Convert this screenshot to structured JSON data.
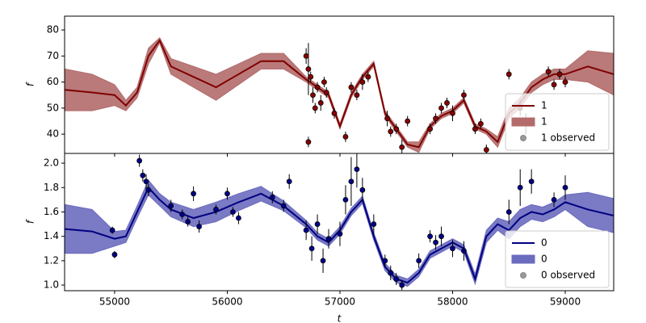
{
  "chart_data": [
    {
      "type": "line",
      "ylabel": "f",
      "xlim": [
        54556,
        59430
      ],
      "ylim": [
        32.6,
        85.3
      ],
      "xticks": [
        55000,
        56000,
        57000,
        58000,
        59000
      ],
      "show_xtick_labels": false,
      "yticks": [
        40,
        50,
        60,
        70,
        80
      ],
      "legend": "lower right",
      "x": [
        54560,
        54800,
        55000,
        55100,
        55200,
        55300,
        55400,
        55500,
        55700,
        55900,
        56100,
        56300,
        56500,
        56700,
        56800,
        56900,
        57000,
        57100,
        57200,
        57300,
        57400,
        57500,
        57600,
        57700,
        57800,
        57900,
        58000,
        58100,
        58200,
        58300,
        58400,
        58500,
        58600,
        58700,
        58800,
        58900,
        59000,
        59200,
        59430
      ],
      "series": [
        {
          "name": "1",
          "kind": "line",
          "color": "#800000",
          "values": [
            57,
            56,
            55,
            51,
            56,
            70,
            76,
            66,
            62,
            58,
            63,
            68,
            68,
            61,
            58,
            55,
            43,
            55,
            62,
            67,
            48,
            42,
            36,
            35,
            43,
            47,
            49,
            53,
            43,
            41,
            37,
            48,
            52,
            58,
            61,
            63,
            63,
            66,
            63
          ]
        },
        {
          "name": "1",
          "kind": "band",
          "color": "#b36b6b",
          "lower": [
            49,
            49,
            51,
            49,
            54,
            67,
            75,
            63,
            58,
            53,
            59,
            65,
            65,
            60,
            57,
            54,
            42,
            54,
            61,
            66,
            47,
            41,
            35,
            33,
            42,
            46,
            48,
            52,
            42,
            40,
            35,
            46,
            50,
            56,
            59,
            61,
            61,
            60,
            55
          ],
          "upper": [
            65,
            63,
            59,
            53,
            58,
            73,
            77,
            69,
            66,
            63,
            67,
            71,
            71,
            62,
            59,
            56,
            44,
            56,
            63,
            68,
            49,
            43,
            37,
            37,
            44,
            48,
            50,
            54,
            44,
            42,
            39,
            50,
            54,
            60,
            63,
            65,
            65,
            72,
            71
          ]
        },
        {
          "name": "1 observed",
          "kind": "observed",
          "color": "#8b0000",
          "x": [
            56700,
            56720,
            56740,
            56760,
            56780,
            56800,
            56830,
            56860,
            56880,
            56720,
            56950,
            57050,
            57100,
            57150,
            57200,
            57250,
            57420,
            57450,
            57500,
            57550,
            57600,
            57800,
            57850,
            57900,
            57950,
            58000,
            58100,
            58200,
            58250,
            58300,
            58500,
            58600,
            58650,
            58850,
            58900,
            58950,
            59000
          ],
          "values": [
            70,
            65,
            62,
            55,
            50,
            58,
            52,
            60,
            56,
            37,
            48,
            39,
            58,
            55,
            60,
            62,
            46,
            41,
            42,
            35,
            45,
            42,
            46,
            50,
            52,
            48,
            55,
            42,
            44,
            34,
            63,
            50,
            44,
            64,
            59,
            63,
            60
          ],
          "errors": [
            3,
            10,
            2,
            3,
            2,
            2,
            3,
            2,
            2,
            2,
            2,
            2,
            2,
            2,
            3,
            2,
            3,
            2,
            2,
            3,
            2,
            2,
            2,
            2,
            2,
            3,
            2,
            2,
            2,
            2,
            2,
            3,
            4,
            2,
            2,
            2,
            2
          ]
        }
      ]
    },
    {
      "type": "line",
      "ylabel": "f",
      "xlabel": "t",
      "xlim": [
        54556,
        59430
      ],
      "ylim": [
        0.954,
        2.08
      ],
      "xticks": [
        55000,
        56000,
        57000,
        58000,
        59000
      ],
      "show_xtick_labels": true,
      "yticks": [
        {
          "value": 1,
          "label": "1.0"
        },
        1.2,
        1.4,
        1.6,
        1.8,
        {
          "value": 2,
          "label": "2.0"
        }
      ],
      "legend": "lower right",
      "x": [
        54560,
        54800,
        55000,
        55100,
        55200,
        55300,
        55400,
        55500,
        55700,
        55900,
        56100,
        56300,
        56500,
        56700,
        56800,
        56900,
        57000,
        57100,
        57200,
        57300,
        57400,
        57500,
        57600,
        57700,
        57800,
        57900,
        58000,
        58100,
        58200,
        58300,
        58400,
        58500,
        58600,
        58700,
        58800,
        58900,
        59000,
        59200,
        59430
      ],
      "series": [
        {
          "name": "0",
          "kind": "line",
          "color": "#000080",
          "values": [
            1.46,
            1.44,
            1.38,
            1.4,
            1.6,
            1.8,
            1.7,
            1.62,
            1.55,
            1.6,
            1.68,
            1.75,
            1.65,
            1.5,
            1.4,
            1.35,
            1.45,
            1.6,
            1.7,
            1.4,
            1.15,
            1.05,
            1.02,
            1.1,
            1.25,
            1.3,
            1.35,
            1.3,
            1.05,
            1.4,
            1.5,
            1.45,
            1.55,
            1.6,
            1.58,
            1.62,
            1.68,
            1.62,
            1.57
          ]
        },
        {
          "name": "0",
          "kind": "band",
          "color": "#6b6bbf",
          "lower": [
            1.26,
            1.26,
            1.32,
            1.35,
            1.55,
            1.74,
            1.65,
            1.56,
            1.48,
            1.52,
            1.61,
            1.69,
            1.61,
            1.47,
            1.37,
            1.32,
            1.42,
            1.57,
            1.67,
            1.37,
            1.12,
            1.02,
            0.99,
            1.07,
            1.22,
            1.27,
            1.32,
            1.27,
            1.01,
            1.35,
            1.45,
            1.38,
            1.48,
            1.54,
            1.52,
            1.56,
            1.62,
            1.48,
            1.43
          ],
          "upper": [
            1.66,
            1.62,
            1.44,
            1.45,
            1.65,
            1.86,
            1.75,
            1.68,
            1.62,
            1.68,
            1.75,
            1.81,
            1.69,
            1.53,
            1.43,
            1.38,
            1.48,
            1.63,
            1.73,
            1.43,
            1.18,
            1.08,
            1.05,
            1.13,
            1.28,
            1.33,
            1.38,
            1.33,
            1.09,
            1.45,
            1.55,
            1.52,
            1.62,
            1.66,
            1.64,
            1.68,
            1.74,
            1.76,
            1.71
          ]
        },
        {
          "name": "0 observed",
          "kind": "observed",
          "color": "#00008b",
          "x": [
            54980,
            55000,
            55220,
            55250,
            55280,
            55300,
            55500,
            55600,
            55650,
            55700,
            55750,
            55900,
            56000,
            56050,
            56100,
            56400,
            56500,
            56550,
            56700,
            56750,
            56800,
            56850,
            56900,
            57000,
            57050,
            57100,
            57150,
            57200,
            57300,
            57400,
            57450,
            57500,
            57550,
            57700,
            57800,
            57850,
            57900,
            58000,
            58100,
            58500,
            58600,
            58700,
            58900,
            59000
          ],
          "values": [
            1.45,
            1.25,
            2.02,
            1.9,
            1.85,
            1.78,
            1.65,
            1.58,
            1.52,
            1.75,
            1.48,
            1.62,
            1.75,
            1.6,
            1.55,
            1.72,
            1.65,
            1.85,
            1.45,
            1.3,
            1.5,
            1.2,
            1.38,
            1.42,
            1.7,
            1.85,
            1.95,
            1.78,
            1.5,
            1.2,
            1.1,
            1.05,
            1.0,
            1.2,
            1.4,
            1.35,
            1.4,
            1.3,
            1.28,
            1.6,
            1.8,
            1.85,
            1.7,
            1.8
          ],
          "errors": [
            0.03,
            0.03,
            0.05,
            0.05,
            0.06,
            0.05,
            0.05,
            0.04,
            0.04,
            0.06,
            0.05,
            0.04,
            0.05,
            0.04,
            0.05,
            0.05,
            0.05,
            0.06,
            0.08,
            0.1,
            0.08,
            0.1,
            0.08,
            0.1,
            0.12,
            0.2,
            0.15,
            0.1,
            0.08,
            0.05,
            0.06,
            0.05,
            0.04,
            0.06,
            0.05,
            0.06,
            0.08,
            0.07,
            0.08,
            0.1,
            0.15,
            0.1,
            0.06,
            0.1
          ]
        }
      ]
    }
  ]
}
